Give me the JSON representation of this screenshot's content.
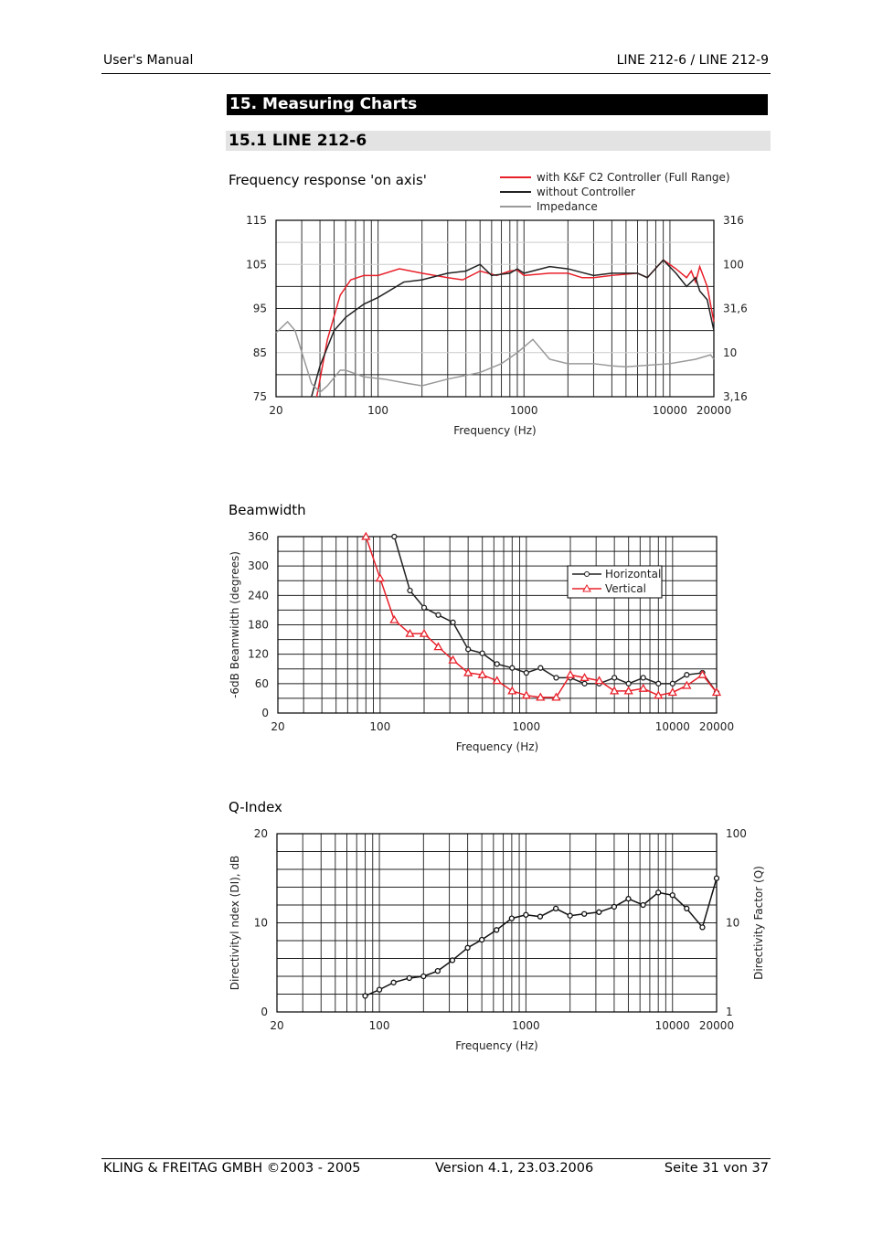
{
  "header": {
    "left": "User's Manual",
    "right": "LINE 212-6 / LINE 212-9"
  },
  "section": {
    "title": "15. Measuring Charts",
    "subtitle": "15.1  LINE 212-6"
  },
  "footer": {
    "company": "KLING & FREITAG GMBH ©2003 - 2005",
    "version": "Version 4.1, 23.03.2006",
    "page": "Seite 31 von 37"
  },
  "colors": {
    "red": "#e8202a",
    "black": "#222222",
    "gray": "#999999"
  },
  "chart_data": [
    {
      "type": "line",
      "title": "Frequency response 'on axis'",
      "xlabel": "Frequency (Hz)",
      "xscale": "log",
      "xlim": [
        20,
        20000
      ],
      "ylim": [
        75,
        115
      ],
      "xticks": [
        "20",
        "100",
        "1000",
        "10000",
        "20000"
      ],
      "xtick_values": [
        20,
        100,
        1000,
        10000,
        20000
      ],
      "yticks": [
        "75",
        "85",
        "95",
        "105",
        "115"
      ],
      "ytick_values": [
        75,
        85,
        95,
        105,
        115
      ],
      "y2ticks": [
        "3,16",
        "10",
        "31,6",
        "100",
        "316"
      ],
      "legend_position": "top-right",
      "series": [
        {
          "name": "with K&F C2 Controller (Full Range)",
          "color": "#e8202a",
          "x": [
            38,
            45,
            55,
            65,
            80,
            100,
            140,
            200,
            300,
            380,
            500,
            650,
            800,
            900,
            1000,
            1500,
            2000,
            2500,
            3000,
            4000,
            6000,
            7000,
            9000,
            11000,
            13000,
            14000,
            15000,
            16000,
            18000,
            20000
          ],
          "y": [
            75,
            88,
            98,
            101.5,
            102.5,
            102.5,
            104,
            103,
            102,
            101.5,
            103.5,
            102.5,
            103.5,
            103.7,
            102.5,
            103,
            103,
            102,
            102,
            102.5,
            103,
            102,
            106,
            104,
            102,
            103.5,
            101,
            104.5,
            100,
            92
          ]
        },
        {
          "name": "without Controller",
          "color": "#222222",
          "x": [
            35,
            40,
            50,
            60,
            80,
            100,
            150,
            200,
            300,
            400,
            500,
            600,
            800,
            900,
            1000,
            1500,
            2000,
            3000,
            4000,
            6000,
            7000,
            9000,
            11000,
            13000,
            15000,
            16000,
            18000,
            20000
          ],
          "y": [
            75,
            82,
            90,
            93,
            96,
            97.5,
            101,
            101.5,
            103,
            103.5,
            105,
            102.5,
            103,
            104,
            103,
            104.5,
            104,
            102.5,
            103,
            103,
            102,
            106,
            103,
            100,
            102,
            99,
            97,
            90
          ]
        },
        {
          "name": "Impedance",
          "color": "#999999",
          "x": [
            20,
            24,
            27,
            35,
            40,
            45,
            55,
            60,
            80,
            110,
            160,
            200,
            300,
            500,
            700,
            900,
            1150,
            1500,
            2000,
            3000,
            4000,
            5000,
            10000,
            15000,
            19000,
            20000
          ],
          "y": [
            89.5,
            92,
            90,
            78,
            76,
            77.5,
            81,
            81,
            79.5,
            79,
            78,
            77.5,
            79,
            80.5,
            82.5,
            85,
            88,
            83.5,
            82.5,
            82.5,
            82,
            81.8,
            82.5,
            83.5,
            84.5,
            83.5
          ]
        }
      ]
    },
    {
      "type": "line",
      "title": "Beamwidth",
      "xlabel": "Frequency (Hz)",
      "ylabel": "-6dB Beamwidth (degrees)",
      "xscale": "log",
      "xlim": [
        20,
        20000
      ],
      "ylim": [
        0,
        360
      ],
      "xticks": [
        "20",
        "100",
        "1000",
        "10000",
        "20000"
      ],
      "xtick_values": [
        20,
        100,
        1000,
        10000,
        20000
      ],
      "yticks": [
        "0",
        "60",
        "120",
        "180",
        "240",
        "300",
        "360"
      ],
      "ytick_values": [
        0,
        60,
        120,
        180,
        240,
        300,
        360
      ],
      "legend_position": "top-right",
      "series": [
        {
          "name": "Horizontal",
          "marker": "circle",
          "color": "#222222",
          "x": [
            125,
            160,
            200,
            250,
            315,
            400,
            500,
            630,
            800,
            1000,
            1250,
            1600,
            2000,
            2500,
            3150,
            4000,
            5000,
            6300,
            8000,
            10000,
            12500,
            16000,
            20000
          ],
          "y": [
            360,
            250,
            215,
            200,
            185,
            130,
            122,
            100,
            92,
            82,
            92,
            72,
            72,
            60,
            60,
            72,
            60,
            72,
            60,
            60,
            78,
            82,
            42
          ]
        },
        {
          "name": "Vertical",
          "marker": "triangle",
          "color": "#e8202a",
          "x": [
            80,
            100,
            125,
            160,
            200,
            250,
            315,
            400,
            500,
            630,
            800,
            1000,
            1250,
            1600,
            2000,
            2500,
            3150,
            4000,
            5000,
            6300,
            8000,
            10000,
            12500,
            16000,
            20000
          ],
          "y": [
            360,
            275,
            190,
            162,
            162,
            135,
            108,
            82,
            78,
            66,
            45,
            36,
            32,
            32,
            78,
            72,
            66,
            45,
            45,
            50,
            36,
            42,
            56,
            78,
            42
          ]
        }
      ]
    },
    {
      "type": "line",
      "title": "Q-Index",
      "xlabel": "Frequency (Hz)",
      "ylabel": "Directivityl ndex (DI), dB",
      "y2label": "Directivity Factor (Q)",
      "xscale": "log",
      "xlim": [
        20,
        20000
      ],
      "ylim": [
        0,
        20
      ],
      "xticks": [
        "20",
        "100",
        "1000",
        "10000",
        "20000"
      ],
      "xtick_values": [
        20,
        100,
        1000,
        10000,
        20000
      ],
      "yticks": [
        "0",
        "10",
        "20"
      ],
      "ytick_values": [
        0,
        10,
        20
      ],
      "y2ticks": [
        "1",
        "10",
        "100"
      ],
      "series": [
        {
          "name": "DI",
          "marker": "circle",
          "color": "#111111",
          "x": [
            80,
            100,
            125,
            160,
            200,
            250,
            315,
            400,
            500,
            630,
            800,
            1000,
            1250,
            1600,
            2000,
            2500,
            3150,
            4000,
            5000,
            6300,
            8000,
            10000,
            12500,
            16000,
            20000
          ],
          "y": [
            1.8,
            2.5,
            3.3,
            3.8,
            4,
            4.6,
            5.8,
            7.2,
            8.1,
            9.2,
            10.5,
            10.9,
            10.7,
            11.6,
            10.8,
            11,
            11.2,
            11.8,
            12.7,
            12,
            13.4,
            13.1,
            11.6,
            9.5,
            15
          ]
        }
      ]
    }
  ]
}
